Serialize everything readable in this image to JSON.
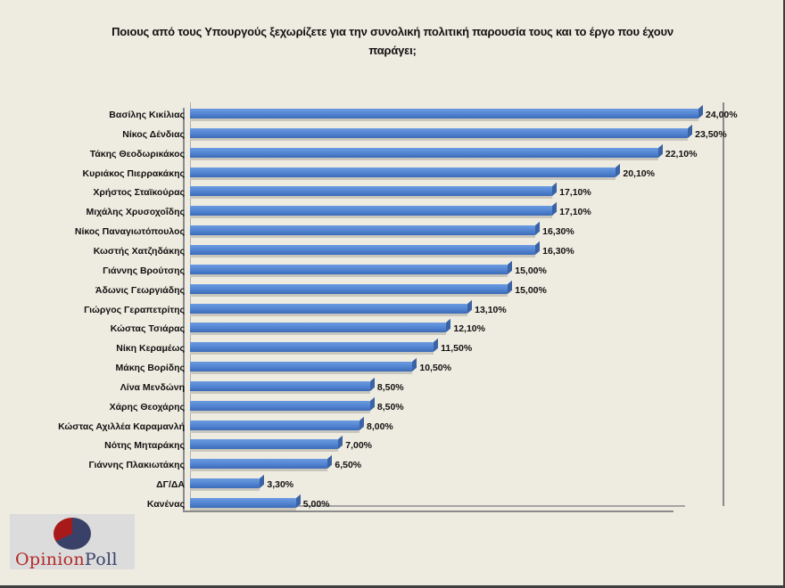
{
  "chart_data": {
    "type": "bar",
    "orientation": "horizontal",
    "title": "Ποιους από τους Υπουργούς  ξεχωρίζετε για την συνολική πολιτική παρουσία τους και το έργο που έχουν παράγει;",
    "xlabel": "",
    "ylabel": "",
    "grid": false,
    "legend": null,
    "style": "3d",
    "categories": [
      "Βασίλης Κικίλιας",
      "Νίκος Δένδιας",
      "Τάκης Θεοδωρικάκος",
      "Κυριάκος Πιερρακάκης",
      "Χρήστος Σταϊκούρας",
      "Μιχάλης Χρυσοχοΐδης",
      "Νίκος Παναγιωτόπουλος",
      "Κωστής Χατζηδάκης",
      "Γιάννης Βρούτσης",
      "Άδωνις Γεωργιάδης",
      "Γιώργος Γεραπετρίτης",
      "Κώστας Τσιάρας",
      "Νίκη Κεραμέως",
      "Μάκης Βορίδης",
      "Λίνα Μενδώνη",
      "Χάρης Θεοχάρης",
      "Κώστας Αχιλλέα Καραμανλή",
      "Νότης Μηταράκης",
      "Γιάννης Πλακιωτάκης",
      "ΔΓ/ΔΑ",
      "Κανένας"
    ],
    "values": [
      24.0,
      23.5,
      22.1,
      20.1,
      17.1,
      17.1,
      16.3,
      16.3,
      15.0,
      15.0,
      13.1,
      12.1,
      11.5,
      10.5,
      8.5,
      8.5,
      8.0,
      7.0,
      6.5,
      3.3,
      5.0
    ],
    "value_labels": [
      "24,00%",
      "23,50%",
      "22,10%",
      "20,10%",
      "17,10%",
      "17,10%",
      "16,30%",
      "16,30%",
      "15,00%",
      "15,00%",
      "13,10%",
      "12,10%",
      "11,50%",
      "10,50%",
      "8,50%",
      "8,50%",
      "8,00%",
      "7,00%",
      "6,50%",
      "3,30%",
      "5,00%"
    ],
    "xlim": [
      0,
      25
    ],
    "bar_color": "#4f81cf"
  },
  "title_line1": "Ποιους από τους Υπουργούς  ξεχωρίζετε για την συνολική πολιτική παρουσία τους και το έργο που έχουν",
  "title_line2": "παράγει;",
  "logo": {
    "part1": "Opinion",
    "part2": "Poll"
  }
}
